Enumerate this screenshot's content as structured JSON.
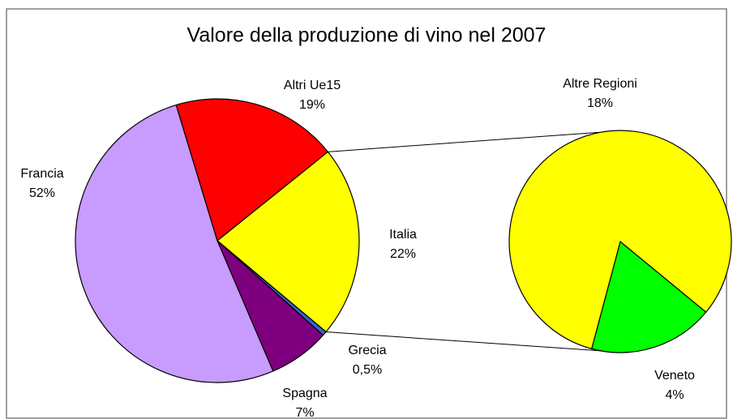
{
  "chart_data": {
    "type": "pie",
    "title": "Valore della produzione di vino nel 2007",
    "categories": [
      "Italia",
      "Grecia",
      "Spagna",
      "Francia",
      "Altri Ue15"
    ],
    "values": [
      22,
      0.5,
      7,
      52,
      19
    ],
    "value_labels": [
      "22%",
      "0,5%",
      "7%",
      "52%",
      "19%"
    ],
    "colors": [
      "#ffff00",
      "#3366cc",
      "#7f007f",
      "#c89bff",
      "#ff0000"
    ],
    "detail": {
      "categories": [
        "Veneto",
        "Altre Regioni"
      ],
      "values": [
        4,
        18
      ],
      "value_labels": [
        "4%",
        "18%"
      ],
      "colors": [
        "#00ff00",
        "#ffff00"
      ]
    }
  }
}
